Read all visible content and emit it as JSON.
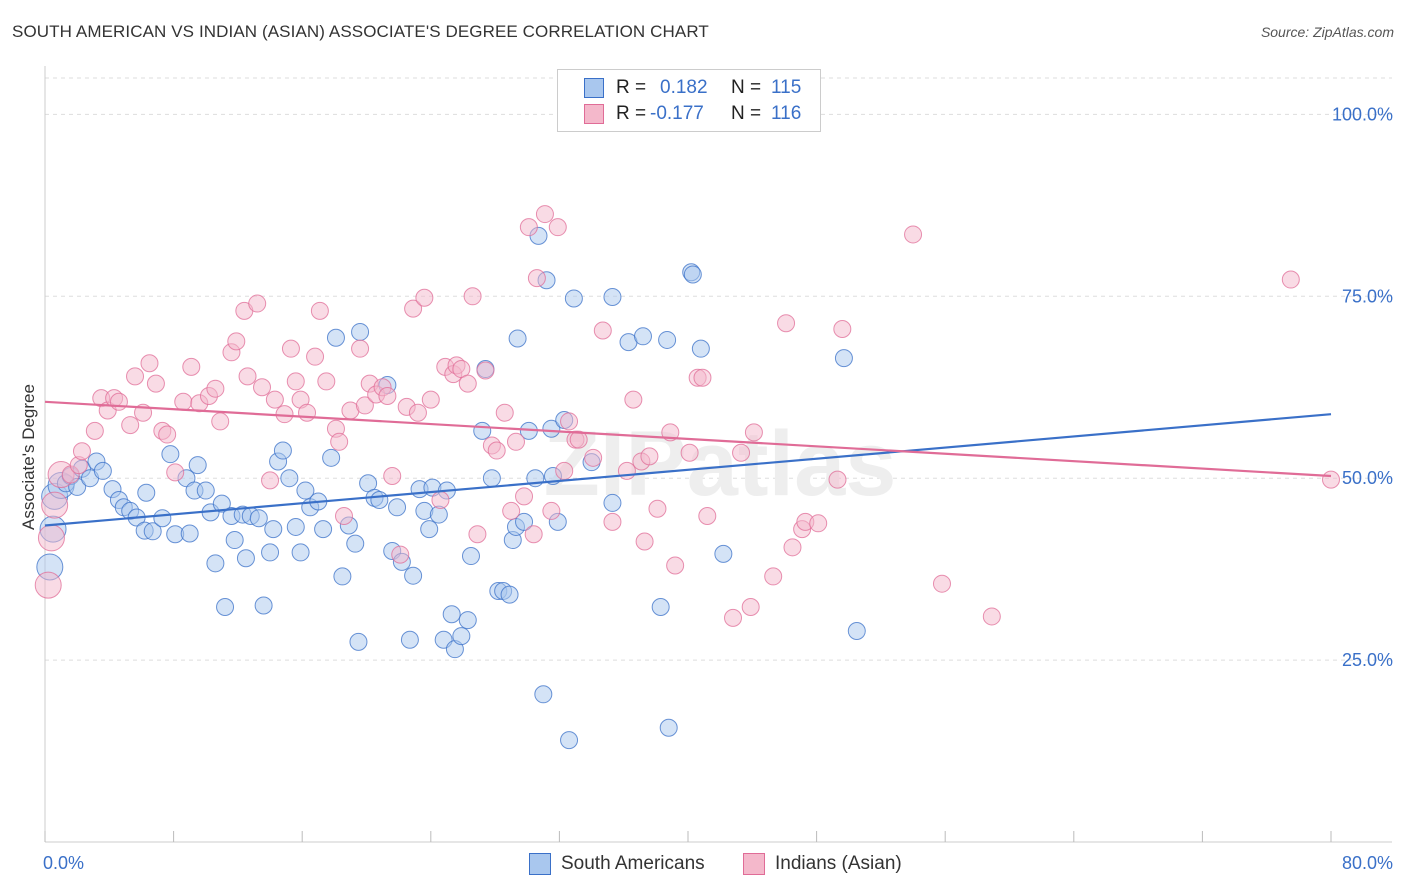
{
  "title": "SOUTH AMERICAN VS INDIAN (ASIAN) ASSOCIATE'S DEGREE CORRELATION CHART",
  "source": "Source: ZipAtlas.com",
  "watermark": "ZIPatlas",
  "colors": {
    "blue": "#3a70c8",
    "blue_fill": "#a9c7ee",
    "pink": "#e06c97",
    "pink_fill": "#f4b8cb",
    "grid": "#dddddd",
    "axis_text": "#3a70c8"
  },
  "legend": {
    "r_label": "R =",
    "n_label": "N =",
    "rows": [
      {
        "series": "South Americans",
        "r": "0.182",
        "n": "115"
      },
      {
        "series": "Indians (Asian)",
        "r": "-0.177",
        "n": "116"
      }
    ]
  },
  "bottom_legend": [
    "South Americans",
    "Indians (Asian)"
  ],
  "chart_data": {
    "type": "scatter",
    "title": "SOUTH AMERICAN VS INDIAN (ASIAN) ASSOCIATE'S DEGREE CORRELATION CHART",
    "xlabel": "",
    "ylabel": "Associate's Degree",
    "xlim": [
      0,
      80
    ],
    "ylim": [
      0,
      105
    ],
    "x_tick_labels": [
      "0.0%",
      "80.0%"
    ],
    "y_ticks": [
      25,
      50,
      75,
      100
    ],
    "y_tick_labels": [
      "25.0%",
      "50.0%",
      "75.0%",
      "100.0%"
    ],
    "grid": true,
    "legend_position": "top-center",
    "series": [
      {
        "name": "South Americans",
        "r": 0.182,
        "n": 115,
        "trend": {
          "x": [
            0,
            80
          ],
          "y": [
            43.5,
            58.8
          ]
        },
        "points": [
          [
            0.3,
            37.8
          ],
          [
            0.5,
            43
          ],
          [
            0.6,
            47.5
          ],
          [
            1,
            49
          ],
          [
            1.3,
            49.3
          ],
          [
            1.6,
            50.3
          ],
          [
            2,
            48.8
          ],
          [
            2.3,
            51.3
          ],
          [
            2.8,
            50
          ],
          [
            3.2,
            52.3
          ],
          [
            3.6,
            51
          ],
          [
            4.2,
            48.5
          ],
          [
            4.6,
            47
          ],
          [
            4.9,
            46
          ],
          [
            5.3,
            45.5
          ],
          [
            5.7,
            44.6
          ],
          [
            6.2,
            42.8
          ],
          [
            6.3,
            48
          ],
          [
            6.7,
            42.7
          ],
          [
            7.3,
            44.5
          ],
          [
            7.8,
            53.3
          ],
          [
            8.1,
            42.3
          ],
          [
            8.8,
            50
          ],
          [
            9,
            42.4
          ],
          [
            9.3,
            48.3
          ],
          [
            9.5,
            51.8
          ],
          [
            10,
            48.3
          ],
          [
            10.3,
            45.3
          ],
          [
            10.6,
            38.3
          ],
          [
            11,
            46.5
          ],
          [
            11.2,
            32.3
          ],
          [
            11.6,
            44.8
          ],
          [
            11.8,
            41.5
          ],
          [
            12.3,
            45
          ],
          [
            12.5,
            39
          ],
          [
            12.8,
            44.8
          ],
          [
            13.3,
            44.5
          ],
          [
            13.6,
            32.5
          ],
          [
            14,
            39.8
          ],
          [
            14.2,
            43
          ],
          [
            14.5,
            52.3
          ],
          [
            14.8,
            53.8
          ],
          [
            15.2,
            50
          ],
          [
            15.6,
            43.3
          ],
          [
            15.9,
            39.8
          ],
          [
            16.2,
            48.3
          ],
          [
            16.5,
            46
          ],
          [
            17,
            46.8
          ],
          [
            17.3,
            43
          ],
          [
            17.8,
            52.8
          ],
          [
            18.1,
            69.3
          ],
          [
            18.5,
            36.5
          ],
          [
            18.9,
            43.5
          ],
          [
            19.3,
            41
          ],
          [
            19.5,
            27.5
          ],
          [
            19.6,
            70.1
          ],
          [
            20.1,
            49.3
          ],
          [
            20.5,
            47.3
          ],
          [
            20.8,
            47
          ],
          [
            21.3,
            62.8
          ],
          [
            21.6,
            40
          ],
          [
            21.9,
            46
          ],
          [
            22.2,
            38.5
          ],
          [
            22.7,
            27.8
          ],
          [
            22.9,
            36.6
          ],
          [
            23.3,
            48.5
          ],
          [
            23.6,
            45.5
          ],
          [
            23.9,
            43
          ],
          [
            24.1,
            48.7
          ],
          [
            24.5,
            45
          ],
          [
            24.8,
            27.8
          ],
          [
            25,
            48.3
          ],
          [
            25.3,
            31.3
          ],
          [
            25.5,
            26.5
          ],
          [
            25.9,
            28.3
          ],
          [
            26.3,
            30.5
          ],
          [
            26.5,
            39.3
          ],
          [
            27.2,
            56.5
          ],
          [
            27.4,
            65
          ],
          [
            27.8,
            50
          ],
          [
            28.2,
            34.5
          ],
          [
            28.5,
            34.5
          ],
          [
            28.9,
            34
          ],
          [
            29.1,
            41.5
          ],
          [
            29.3,
            43.3
          ],
          [
            29.4,
            69.2
          ],
          [
            29.8,
            44
          ],
          [
            30.1,
            56.5
          ],
          [
            30.5,
            50
          ],
          [
            30.7,
            83.3
          ],
          [
            31.0,
            20.3
          ],
          [
            31.2,
            77.2
          ],
          [
            31.5,
            56.8
          ],
          [
            31.6,
            50.3
          ],
          [
            31.9,
            44
          ],
          [
            32.3,
            58
          ],
          [
            32.6,
            14
          ],
          [
            32.9,
            74.7
          ],
          [
            34,
            52.2
          ],
          [
            35.3,
            74.9
          ],
          [
            35.3,
            46.6
          ],
          [
            36.3,
            68.7
          ],
          [
            37.2,
            69.5
          ],
          [
            38.3,
            32.3
          ],
          [
            38.7,
            69
          ],
          [
            38.8,
            15.7
          ],
          [
            40.2,
            78.3
          ],
          [
            40.3,
            78
          ],
          [
            40.8,
            67.8
          ],
          [
            42.2,
            39.6
          ],
          [
            49.7,
            66.5
          ],
          [
            50.5,
            29
          ]
        ]
      },
      {
        "name": "Indians (Asian)",
        "r": -0.177,
        "n": 116,
        "trend": {
          "x": [
            0,
            80
          ],
          "y": [
            60.5,
            50.3
          ]
        },
        "points": [
          [
            0.2,
            35.3
          ],
          [
            0.4,
            41.8
          ],
          [
            0.6,
            46.3
          ],
          [
            1,
            50.5
          ],
          [
            1.6,
            50.5
          ],
          [
            2.1,
            51.8
          ],
          [
            2.3,
            53.7
          ],
          [
            3.1,
            56.5
          ],
          [
            3.5,
            61
          ],
          [
            3.9,
            59.3
          ],
          [
            4.3,
            61
          ],
          [
            4.6,
            60.5
          ],
          [
            5.3,
            57.3
          ],
          [
            5.6,
            64
          ],
          [
            6.1,
            59
          ],
          [
            6.5,
            65.8
          ],
          [
            6.9,
            63
          ],
          [
            7.3,
            56.5
          ],
          [
            7.6,
            56
          ],
          [
            8.1,
            50.8
          ],
          [
            8.6,
            60.5
          ],
          [
            9.1,
            65.3
          ],
          [
            9.6,
            60.3
          ],
          [
            10.2,
            61.3
          ],
          [
            10.6,
            62.3
          ],
          [
            10.9,
            57.8
          ],
          [
            11.6,
            67.3
          ],
          [
            11.9,
            68.8
          ],
          [
            12.4,
            73
          ],
          [
            12.6,
            64
          ],
          [
            13.2,
            74
          ],
          [
            13.5,
            62.5
          ],
          [
            14,
            49.7
          ],
          [
            14.3,
            60.8
          ],
          [
            14.9,
            58.8
          ],
          [
            15.3,
            67.8
          ],
          [
            15.6,
            63.3
          ],
          [
            15.9,
            60.8
          ],
          [
            16.3,
            59
          ],
          [
            16.8,
            66.7
          ],
          [
            17.1,
            73
          ],
          [
            17.5,
            63.3
          ],
          [
            18.1,
            56.8
          ],
          [
            18.3,
            55
          ],
          [
            18.6,
            44.8
          ],
          [
            19,
            59.3
          ],
          [
            19.6,
            67.8
          ],
          [
            19.9,
            60
          ],
          [
            20.2,
            63
          ],
          [
            20.6,
            61.5
          ],
          [
            21,
            62.5
          ],
          [
            21.3,
            61.3
          ],
          [
            21.6,
            50.3
          ],
          [
            22.1,
            39.5
          ],
          [
            22.5,
            59.8
          ],
          [
            22.9,
            73.3
          ],
          [
            23.2,
            59
          ],
          [
            23.6,
            74.8
          ],
          [
            24,
            60.8
          ],
          [
            24.6,
            47
          ],
          [
            24.9,
            65.3
          ],
          [
            25.4,
            64.3
          ],
          [
            25.6,
            65.5
          ],
          [
            25.9,
            65
          ],
          [
            26.3,
            63
          ],
          [
            26.6,
            75
          ],
          [
            26.9,
            42.3
          ],
          [
            27.4,
            64.8
          ],
          [
            27.8,
            54.5
          ],
          [
            28.1,
            53.8
          ],
          [
            28.6,
            59
          ],
          [
            29,
            45.5
          ],
          [
            29.3,
            55
          ],
          [
            29.8,
            47.5
          ],
          [
            30.1,
            84.5
          ],
          [
            30.4,
            42.3
          ],
          [
            30.6,
            77.5
          ],
          [
            31.1,
            86.3
          ],
          [
            31.5,
            45.5
          ],
          [
            31.9,
            84.5
          ],
          [
            32.3,
            51
          ],
          [
            32.6,
            57.8
          ],
          [
            33,
            55.3
          ],
          [
            33.2,
            55.3
          ],
          [
            34.1,
            52.8
          ],
          [
            34.7,
            70.3
          ],
          [
            35.3,
            44
          ],
          [
            36.2,
            51
          ],
          [
            36.6,
            60.8
          ],
          [
            37.1,
            52.3
          ],
          [
            37.3,
            41.3
          ],
          [
            37.6,
            53
          ],
          [
            38.1,
            45.8
          ],
          [
            38.9,
            56.3
          ],
          [
            39.2,
            38
          ],
          [
            40.1,
            53.5
          ],
          [
            40.6,
            63.8
          ],
          [
            40.9,
            63.8
          ],
          [
            41.2,
            44.8
          ],
          [
            42.8,
            30.8
          ],
          [
            43.3,
            53.5
          ],
          [
            43.9,
            32.3
          ],
          [
            44.1,
            56.3
          ],
          [
            45.3,
            36.5
          ],
          [
            46.1,
            71.3
          ],
          [
            46.5,
            40.5
          ],
          [
            47.1,
            43
          ],
          [
            47.3,
            44
          ],
          [
            48.1,
            43.8
          ],
          [
            49.3,
            49.8
          ],
          [
            49.6,
            70.5
          ],
          [
            54,
            83.5
          ],
          [
            55.8,
            35.5
          ],
          [
            58.9,
            31
          ],
          [
            77.5,
            77.3
          ],
          [
            80,
            49.8
          ]
        ]
      }
    ]
  }
}
